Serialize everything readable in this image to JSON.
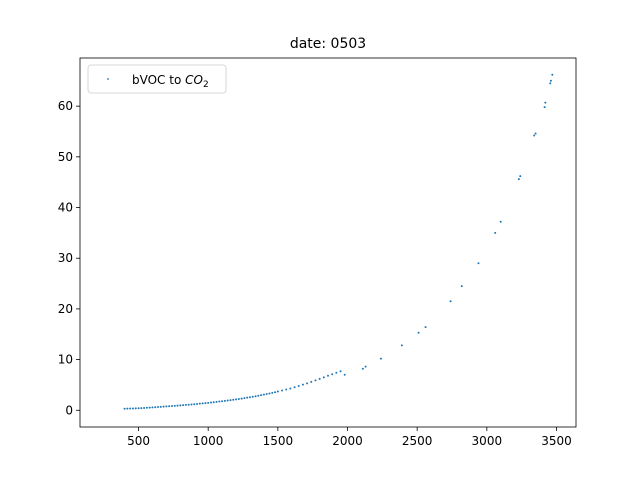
{
  "chart_data": {
    "type": "scatter",
    "title": "date: 0503",
    "xlabel": "",
    "ylabel": "",
    "xlim": [
      80,
      3640
    ],
    "ylim": [
      -3.3,
      69.5
    ],
    "xticks": [
      500,
      1000,
      1500,
      2000,
      2500,
      3000,
      3500
    ],
    "yticks": [
      0,
      10,
      20,
      30,
      40,
      50,
      60
    ],
    "grid": false,
    "legend": {
      "position": "top-left",
      "entries": [
        {
          "label_prefix": "bVOC to ",
          "label_main": "CO",
          "label_sub": "2"
        }
      ]
    },
    "marker_color": "#1f77b4",
    "series": [
      {
        "name": "bVOC to CO2",
        "points": [
          [
            400,
            0.3
          ],
          [
            420,
            0.32
          ],
          [
            440,
            0.34
          ],
          [
            460,
            0.36
          ],
          [
            480,
            0.38
          ],
          [
            500,
            0.4
          ],
          [
            520,
            0.43
          ],
          [
            540,
            0.46
          ],
          [
            560,
            0.49
          ],
          [
            580,
            0.52
          ],
          [
            600,
            0.56
          ],
          [
            620,
            0.6
          ],
          [
            640,
            0.64
          ],
          [
            660,
            0.68
          ],
          [
            680,
            0.72
          ],
          [
            700,
            0.76
          ],
          [
            720,
            0.8
          ],
          [
            740,
            0.84
          ],
          [
            760,
            0.88
          ],
          [
            780,
            0.92
          ],
          [
            800,
            0.97
          ],
          [
            820,
            1.01
          ],
          [
            840,
            1.06
          ],
          [
            860,
            1.1
          ],
          [
            880,
            1.15
          ],
          [
            900,
            1.2
          ],
          [
            920,
            1.25
          ],
          [
            940,
            1.3
          ],
          [
            960,
            1.36
          ],
          [
            980,
            1.41
          ],
          [
            1000,
            1.47
          ],
          [
            1020,
            1.53
          ],
          [
            1040,
            1.59
          ],
          [
            1060,
            1.65
          ],
          [
            1080,
            1.72
          ],
          [
            1100,
            1.78
          ],
          [
            1120,
            1.85
          ],
          [
            1140,
            1.92
          ],
          [
            1160,
            2.0
          ],
          [
            1180,
            2.07
          ],
          [
            1200,
            2.15
          ],
          [
            1220,
            2.23
          ],
          [
            1240,
            2.31
          ],
          [
            1260,
            2.4
          ],
          [
            1280,
            2.49
          ],
          [
            1300,
            2.58
          ],
          [
            1320,
            2.67
          ],
          [
            1340,
            2.77
          ],
          [
            1360,
            2.87
          ],
          [
            1380,
            2.98
          ],
          [
            1400,
            3.09
          ],
          [
            1420,
            3.2
          ],
          [
            1440,
            3.32
          ],
          [
            1460,
            3.44
          ],
          [
            1480,
            3.56
          ],
          [
            1500,
            3.7
          ],
          [
            1530,
            3.9
          ],
          [
            1560,
            4.1
          ],
          [
            1590,
            4.3
          ],
          [
            1620,
            4.55
          ],
          [
            1650,
            4.8
          ],
          [
            1680,
            5.05
          ],
          [
            1710,
            5.3
          ],
          [
            1740,
            5.6
          ],
          [
            1770,
            5.9
          ],
          [
            1800,
            6.2
          ],
          [
            1830,
            6.5
          ],
          [
            1860,
            6.8
          ],
          [
            1890,
            7.1
          ],
          [
            1920,
            7.4
          ],
          [
            1950,
            7.7
          ],
          [
            1980,
            7.0
          ],
          [
            2110,
            8.2
          ],
          [
            2130,
            8.6
          ],
          [
            2240,
            10.2
          ],
          [
            2390,
            12.8
          ],
          [
            2510,
            15.3
          ],
          [
            2560,
            16.4
          ],
          [
            2740,
            21.5
          ],
          [
            2820,
            24.5
          ],
          [
            2940,
            29.0
          ],
          [
            3060,
            35.0
          ],
          [
            3100,
            37.2
          ],
          [
            3230,
            45.6
          ],
          [
            3240,
            46.2
          ],
          [
            3340,
            54.2
          ],
          [
            3350,
            54.6
          ],
          [
            3415,
            59.8
          ],
          [
            3420,
            60.7
          ],
          [
            3455,
            64.5
          ],
          [
            3460,
            65.0
          ],
          [
            3470,
            66.2
          ]
        ]
      }
    ]
  }
}
